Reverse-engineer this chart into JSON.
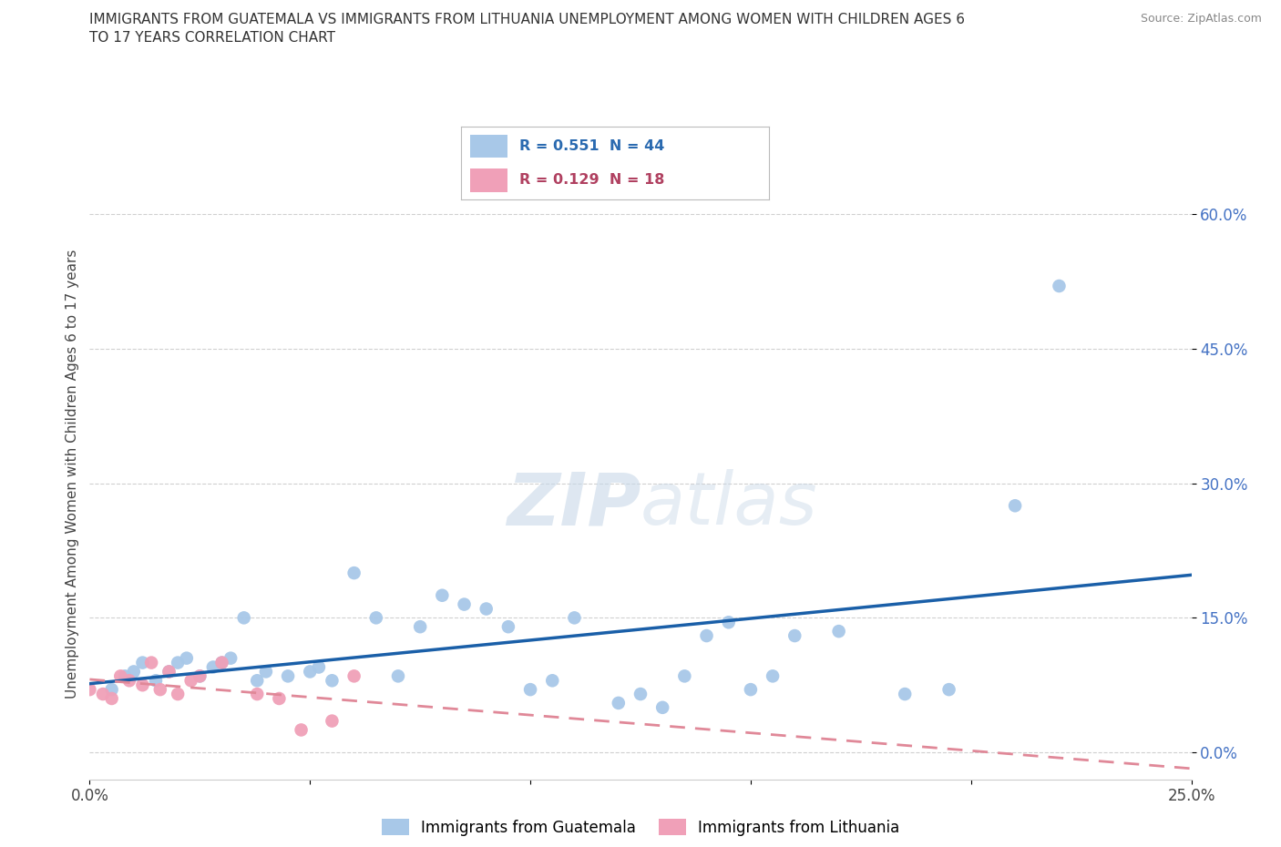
{
  "title_line1": "IMMIGRANTS FROM GUATEMALA VS IMMIGRANTS FROM LITHUANIA UNEMPLOYMENT AMONG WOMEN WITH CHILDREN AGES 6",
  "title_line2": "TO 17 YEARS CORRELATION CHART",
  "source": "Source: ZipAtlas.com",
  "ylabel": "Unemployment Among Women with Children Ages 6 to 17 years",
  "xlim": [
    0.0,
    0.25
  ],
  "ylim": [
    -0.03,
    0.65
  ],
  "xticks": [
    0.0,
    0.05,
    0.1,
    0.15,
    0.2,
    0.25
  ],
  "ytick_positions": [
    0.0,
    0.15,
    0.3,
    0.45,
    0.6
  ],
  "ytick_labels": [
    "0.0%",
    "15.0%",
    "30.0%",
    "45.0%",
    "60.0%"
  ],
  "xtick_labels": [
    "0.0%",
    "",
    "",
    "",
    "",
    "25.0%"
  ],
  "guatemala_color": "#a8c8e8",
  "lithuania_color": "#f0a0b8",
  "guatemala_line_color": "#1a5fa8",
  "lithuania_line_color": "#e08898",
  "watermark_zip": "ZIP",
  "watermark_atlas": "atlas",
  "R_guatemala": 0.551,
  "N_guatemala": 44,
  "R_lithuania": 0.129,
  "N_lithuania": 18,
  "guatemala_x": [
    0.005,
    0.008,
    0.01,
    0.012,
    0.015,
    0.018,
    0.02,
    0.022,
    0.025,
    0.028,
    0.03,
    0.032,
    0.035,
    0.038,
    0.04,
    0.045,
    0.05,
    0.052,
    0.055,
    0.06,
    0.065,
    0.07,
    0.075,
    0.08,
    0.085,
    0.09,
    0.095,
    0.1,
    0.105,
    0.11,
    0.12,
    0.125,
    0.13,
    0.135,
    0.14,
    0.145,
    0.15,
    0.155,
    0.16,
    0.17,
    0.185,
    0.195,
    0.21,
    0.22
  ],
  "guatemala_y": [
    0.07,
    0.085,
    0.09,
    0.1,
    0.08,
    0.09,
    0.1,
    0.105,
    0.085,
    0.095,
    0.1,
    0.105,
    0.15,
    0.08,
    0.09,
    0.085,
    0.09,
    0.095,
    0.08,
    0.2,
    0.15,
    0.085,
    0.14,
    0.175,
    0.165,
    0.16,
    0.14,
    0.07,
    0.08,
    0.15,
    0.055,
    0.065,
    0.05,
    0.085,
    0.13,
    0.145,
    0.07,
    0.085,
    0.13,
    0.135,
    0.065,
    0.07,
    0.275,
    0.52
  ],
  "lithuania_x": [
    0.0,
    0.003,
    0.005,
    0.007,
    0.009,
    0.012,
    0.014,
    0.016,
    0.018,
    0.02,
    0.023,
    0.025,
    0.03,
    0.038,
    0.043,
    0.048,
    0.055,
    0.06
  ],
  "lithuania_y": [
    0.07,
    0.065,
    0.06,
    0.085,
    0.08,
    0.075,
    0.1,
    0.07,
    0.09,
    0.065,
    0.08,
    0.085,
    0.1,
    0.065,
    0.06,
    0.025,
    0.035,
    0.085
  ],
  "background_color": "#ffffff",
  "grid_color": "#d0d0d0",
  "legend_label_guatemala": "Immigrants from Guatemala",
  "legend_label_lithuania": "Immigrants from Lithuania"
}
